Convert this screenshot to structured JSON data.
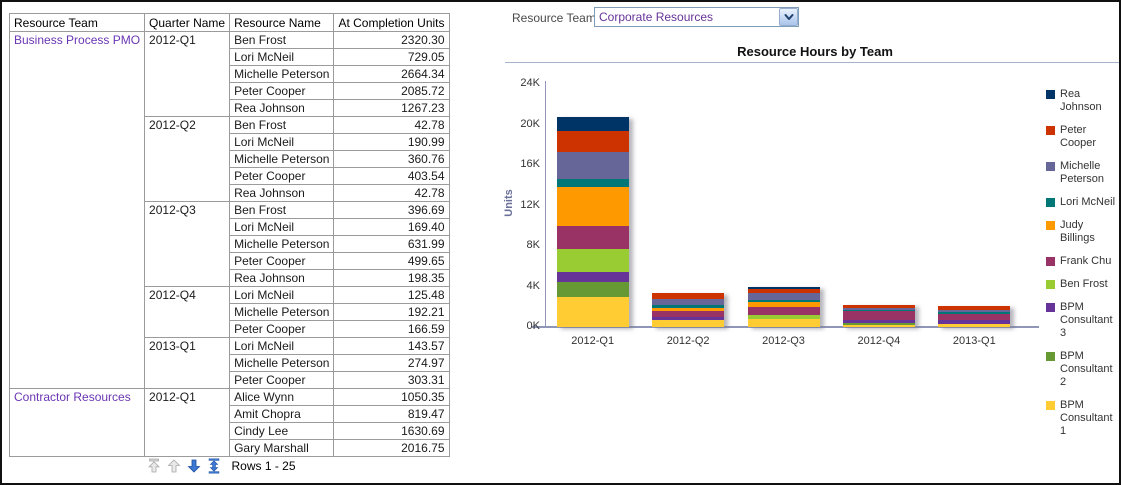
{
  "filter": {
    "label": "Resource Team",
    "value": "Corporate Resources"
  },
  "table": {
    "columns": [
      "Resource Team",
      "Quarter Name",
      "Resource Name",
      "At Completion Units"
    ],
    "groups": [
      {
        "team": "Business Process PMO",
        "quarters": [
          {
            "quarter": "2012-Q1",
            "rows": [
              [
                "Ben Frost",
                "2320.30"
              ],
              [
                "Lori McNeil",
                "729.05"
              ],
              [
                "Michelle Peterson",
                "2664.34"
              ],
              [
                "Peter Cooper",
                "2085.72"
              ],
              [
                "Rea Johnson",
                "1267.23"
              ]
            ]
          },
          {
            "quarter": "2012-Q2",
            "rows": [
              [
                "Ben Frost",
                "42.78"
              ],
              [
                "Lori McNeil",
                "190.99"
              ],
              [
                "Michelle Peterson",
                "360.76"
              ],
              [
                "Peter Cooper",
                "403.54"
              ],
              [
                "Rea Johnson",
                "42.78"
              ]
            ]
          },
          {
            "quarter": "2012-Q3",
            "rows": [
              [
                "Ben Frost",
                "396.69"
              ],
              [
                "Lori McNeil",
                "169.40"
              ],
              [
                "Michelle Peterson",
                "631.99"
              ],
              [
                "Peter Cooper",
                "499.65"
              ],
              [
                "Rea Johnson",
                "198.35"
              ]
            ]
          },
          {
            "quarter": "2012-Q4",
            "rows": [
              [
                "Lori McNeil",
                "125.48"
              ],
              [
                "Michelle Peterson",
                "192.21"
              ],
              [
                "Peter Cooper",
                "166.59"
              ]
            ]
          },
          {
            "quarter": "2013-Q1",
            "rows": [
              [
                "Lori McNeil",
                "143.57"
              ],
              [
                "Michelle Peterson",
                "274.97"
              ],
              [
                "Peter Cooper",
                "303.31"
              ]
            ]
          }
        ]
      },
      {
        "team": "Contractor Resources",
        "quarters": [
          {
            "quarter": "2012-Q1",
            "rows": [
              [
                "Alice Wynn",
                "1050.35"
              ],
              [
                "Amit Chopra",
                "819.47"
              ],
              [
                "Cindy Lee",
                "1630.69"
              ],
              [
                "Gary Marshall",
                "2016.75"
              ]
            ]
          }
        ]
      }
    ],
    "pager": {
      "label": "Rows 1 - 25"
    }
  },
  "chart_data": {
    "type": "bar",
    "stacked": true,
    "title": "Resource Hours by Team",
    "ylabel": "Units",
    "xlabel": "",
    "categories": [
      "2012-Q1",
      "2012-Q2",
      "2012-Q3",
      "2012-Q4",
      "2013-Q1"
    ],
    "y_ticks": [
      "0K",
      "4K",
      "8K",
      "12K",
      "16K",
      "20K",
      "24K"
    ],
    "ylim": [
      0,
      24000
    ],
    "grid": false,
    "legend_position": "right",
    "series": [
      {
        "name": "BPM Consultant 1",
        "color": "#FFCC33",
        "values": [
          3000,
          730,
          820,
          250,
          260
        ]
      },
      {
        "name": "BPM Consultant 2",
        "color": "#669933",
        "values": [
          1450,
          0,
          0,
          150,
          0
        ]
      },
      {
        "name": "BPM Consultant 3",
        "color": "#663399",
        "values": [
          950,
          300,
          0,
          260,
          400
        ]
      },
      {
        "name": "Ben Frost",
        "color": "#99CC33",
        "values": [
          2300,
          0,
          400,
          0,
          0
        ]
      },
      {
        "name": "Frank Chu",
        "color": "#993366",
        "values": [
          2250,
          560,
          760,
          900,
          630
        ]
      },
      {
        "name": "Judy Billings",
        "color": "#FF9900",
        "values": [
          3900,
          260,
          500,
          0,
          0
        ]
      },
      {
        "name": "Lori McNeil",
        "color": "#007777",
        "values": [
          750,
          330,
          230,
          100,
          200
        ]
      },
      {
        "name": "Michelle Peterson",
        "color": "#666699",
        "values": [
          2700,
          600,
          700,
          200,
          230
        ]
      },
      {
        "name": "Peter Cooper",
        "color": "#CC3300",
        "values": [
          2100,
          560,
          330,
          330,
          400
        ]
      },
      {
        "name": "Rea Johnson",
        "color": "#003366",
        "values": [
          1300,
          0,
          200,
          0,
          0
        ]
      }
    ]
  }
}
